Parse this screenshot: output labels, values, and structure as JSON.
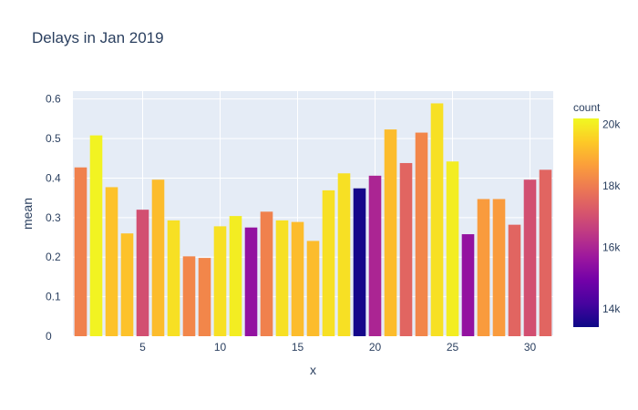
{
  "chart_data": {
    "type": "bar",
    "title": "Delays in Jan 2019",
    "xlabel": "x",
    "ylabel": "mean",
    "x": [
      1,
      2,
      3,
      4,
      5,
      6,
      7,
      8,
      9,
      10,
      11,
      12,
      13,
      14,
      15,
      16,
      17,
      18,
      19,
      20,
      21,
      22,
      23,
      24,
      25,
      26,
      27,
      28,
      29,
      30,
      31
    ],
    "values": [
      0.427,
      0.508,
      0.377,
      0.26,
      0.32,
      0.396,
      0.293,
      0.202,
      0.198,
      0.278,
      0.304,
      0.275,
      0.315,
      0.293,
      0.289,
      0.241,
      0.369,
      0.412,
      0.374,
      0.406,
      0.523,
      0.438,
      0.515,
      0.589,
      0.442,
      0.258,
      0.347,
      0.347,
      0.282,
      0.396,
      0.421
    ],
    "counts": [
      18100,
      20100,
      19300,
      19300,
      17000,
      19200,
      19800,
      18200,
      18200,
      19800,
      20000,
      15500,
      18100,
      19800,
      19200,
      19200,
      19800,
      19800,
      13500,
      16000,
      19200,
      17500,
      18200,
      19800,
      20000,
      15500,
      18600,
      18600,
      17500,
      17000,
      17500
    ],
    "xlim": [
      0.5,
      31.5
    ],
    "ylim": [
      0,
      0.62
    ],
    "xticks": [
      5,
      10,
      15,
      20,
      25,
      30
    ],
    "yticks": [
      0,
      0.1,
      0.2,
      0.3,
      0.4,
      0.5,
      0.6
    ],
    "ytick_labels": [
      "0",
      "0.1",
      "0.2",
      "0.3",
      "0.4",
      "0.5",
      "0.6"
    ],
    "colorbar": {
      "title": "count",
      "min": 13400,
      "max": 20200,
      "ticks": [
        14000,
        16000,
        18000,
        20000
      ],
      "tick_labels": [
        "14k",
        "16k",
        "18k",
        "20k"
      ],
      "colorscale": [
        "#0d0887",
        "#46039f",
        "#7201a8",
        "#9c179e",
        "#bd3786",
        "#d8576b",
        "#ed7953",
        "#fb9f3a",
        "#fdca26",
        "#f0f921"
      ]
    },
    "grid": true,
    "plot_background": "#e5ecf6"
  }
}
